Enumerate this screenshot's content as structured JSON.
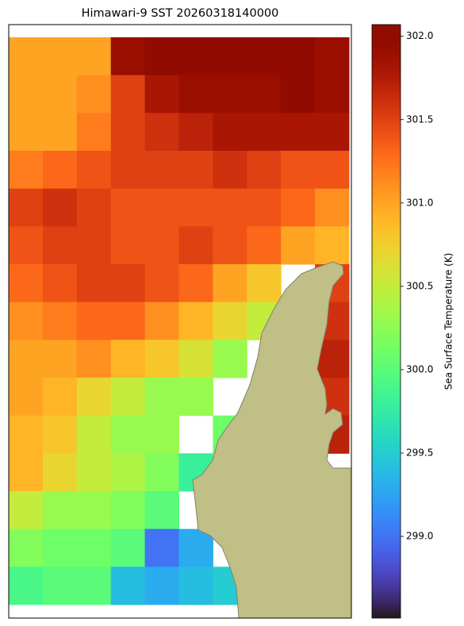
{
  "chart_data": {
    "type": "heatmap",
    "title": "Himawari-9 SST 20260318140000",
    "colorbar_label": "Sea Surface Temperature (K)",
    "colormap": "turbo",
    "clim": [
      298.51,
      302.07
    ],
    "cticks": [
      {
        "value": 299.0,
        "label": "299.0"
      },
      {
        "value": 299.5,
        "label": "299.5"
      },
      {
        "value": 300.0,
        "label": "300.0"
      },
      {
        "value": 300.5,
        "label": "300.5"
      },
      {
        "value": 301.0,
        "label": "301.0"
      },
      {
        "value": 301.5,
        "label": "301.5"
      },
      {
        "value": 302.0,
        "label": "302.0"
      }
    ],
    "values": [
      [
        301.0,
        301.0,
        301.0,
        301.9,
        302.0,
        302.0,
        302.0,
        302.0,
        302.0,
        301.9
      ],
      [
        301.0,
        301.0,
        301.1,
        301.5,
        301.8,
        301.9,
        301.9,
        301.9,
        302.0,
        301.9
      ],
      [
        301.0,
        301.0,
        301.2,
        301.5,
        301.6,
        301.7,
        301.8,
        301.8,
        301.8,
        301.8
      ],
      [
        301.2,
        301.3,
        301.4,
        301.5,
        301.5,
        301.5,
        301.6,
        301.5,
        301.4,
        301.4
      ],
      [
        301.5,
        301.6,
        301.5,
        301.4,
        301.4,
        301.4,
        301.4,
        301.4,
        301.3,
        301.1
      ],
      [
        301.4,
        301.5,
        301.5,
        301.4,
        301.4,
        301.5,
        301.4,
        301.3,
        301.0,
        300.9
      ],
      [
        301.3,
        301.4,
        301.5,
        301.5,
        301.4,
        301.3,
        301.0,
        300.8,
        null,
        301.5
      ],
      [
        301.1,
        301.2,
        301.3,
        301.3,
        301.1,
        300.9,
        300.7,
        300.5,
        null,
        301.6
      ],
      [
        301.0,
        301.0,
        301.1,
        300.9,
        300.8,
        300.6,
        300.3,
        null,
        null,
        301.7
      ],
      [
        301.0,
        300.9,
        300.7,
        300.5,
        300.3,
        300.3,
        null,
        null,
        null,
        301.6
      ],
      [
        300.9,
        300.8,
        300.5,
        300.3,
        300.3,
        null,
        300.1,
        null,
        null,
        301.7
      ],
      [
        300.9,
        300.7,
        300.5,
        300.4,
        300.2,
        299.8,
        null,
        null,
        null,
        null
      ],
      [
        300.5,
        300.3,
        300.3,
        300.2,
        300.0,
        null,
        null,
        null,
        null,
        null
      ],
      [
        300.2,
        300.1,
        300.1,
        300.0,
        299.0,
        299.3,
        null,
        null,
        null,
        null
      ],
      [
        299.9,
        300.0,
        300.0,
        299.4,
        299.3,
        299.4,
        299.5,
        null,
        null,
        null
      ]
    ]
  }
}
